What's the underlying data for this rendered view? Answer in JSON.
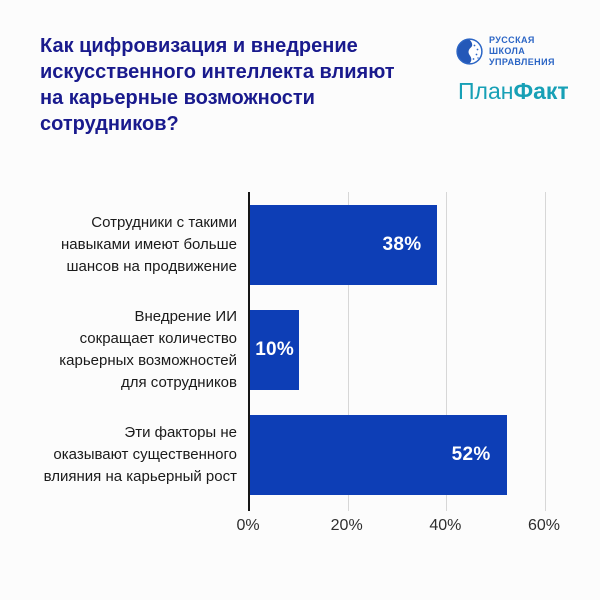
{
  "header": {
    "title": "Как цифровизация и внедрение\nискусственного интеллекта влияют\nна карьерные возможности\nсотрудников?",
    "title_color": "#191A8D",
    "logos": {
      "rsu": {
        "text": "РУССКАЯ\nШКОЛА\nУПРАВЛЕНИЯ",
        "color": "#2B65C5",
        "icon": "globe-face-icon"
      },
      "planfact": {
        "part1": "План",
        "part2": "Факт",
        "color": "#17A0B6"
      }
    }
  },
  "chart_data": {
    "type": "bar",
    "orientation": "horizontal",
    "title": "",
    "xlabel": "",
    "ylabel": "",
    "categories": [
      "Сотрудники с такими\nнавыками имеют больше\nшансов на продвижение",
      "Внедрение ИИ\nсокращает количество\nкарьерных возможностей\nдля сотрудников",
      "Эти факторы не\nоказывают существенного\nвлияния на карьерный рост"
    ],
    "values": [
      38,
      10,
      52
    ],
    "value_labels": [
      "38%",
      "10%",
      "52%"
    ],
    "x_ticks": [
      "0%",
      "20%",
      "40%",
      "60%"
    ],
    "xlim": [
      0,
      60
    ],
    "grid": true,
    "legend": false,
    "bar_color": "#0D3EB6",
    "value_label_color": "#FFFFFF",
    "gridline_color": "#D7D7D7",
    "axis_color": "#161616"
  }
}
